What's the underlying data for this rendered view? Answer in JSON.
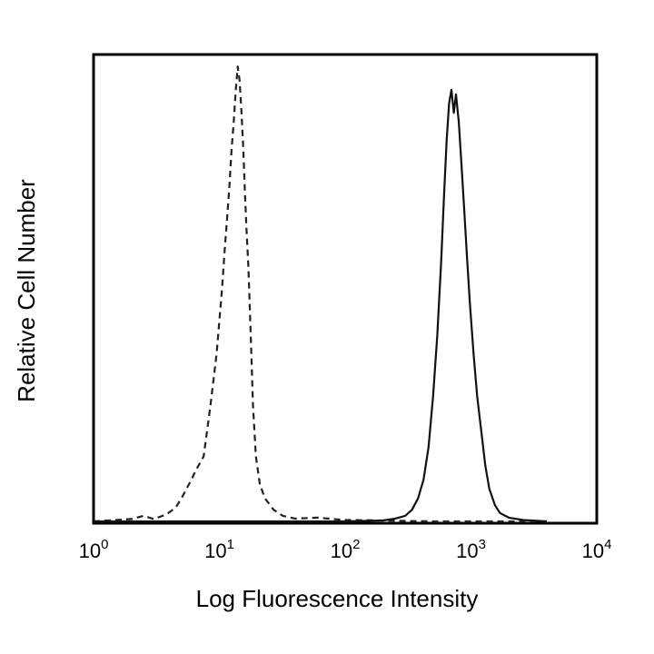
{
  "chart_data": {
    "type": "line",
    "title": "",
    "xlabel": "Log Fluorescence Intensity",
    "ylabel": "Relative Cell Number",
    "x_scale": "log",
    "xlim": [
      1,
      10000
    ],
    "ylim": [
      0,
      1
    ],
    "grid": false,
    "legend": "none",
    "x_ticks": [
      {
        "value": 1,
        "base": "10",
        "exp": "0"
      },
      {
        "value": 10,
        "base": "10",
        "exp": "1"
      },
      {
        "value": 100,
        "base": "10",
        "exp": "2"
      },
      {
        "value": 1000,
        "base": "10",
        "exp": "3"
      },
      {
        "value": 10000,
        "base": "10",
        "exp": "4"
      }
    ],
    "series": [
      {
        "style": "dashed",
        "color": "#222222",
        "points": [
          [
            1.0,
            0.0
          ],
          [
            2.0,
            0.005
          ],
          [
            2.5,
            0.012
          ],
          [
            3.0,
            0.005
          ],
          [
            3.8,
            0.015
          ],
          [
            4.5,
            0.03
          ],
          [
            5.0,
            0.05
          ],
          [
            6.0,
            0.09
          ],
          [
            6.5,
            0.11
          ],
          [
            7.5,
            0.14
          ],
          [
            8.5,
            0.25
          ],
          [
            9.5,
            0.36
          ],
          [
            10.5,
            0.5
          ],
          [
            11.0,
            0.58
          ],
          [
            11.5,
            0.65
          ],
          [
            12.0,
            0.72
          ],
          [
            12.5,
            0.8
          ],
          [
            13.0,
            0.86
          ],
          [
            13.5,
            0.93
          ],
          [
            14.0,
            0.98
          ],
          [
            14.5,
            0.95
          ],
          [
            15.0,
            0.88
          ],
          [
            15.5,
            0.8
          ],
          [
            16.0,
            0.7
          ],
          [
            16.5,
            0.62
          ],
          [
            17.0,
            0.55
          ],
          [
            17.5,
            0.45
          ],
          [
            18.0,
            0.35
          ],
          [
            18.5,
            0.25
          ],
          [
            19.5,
            0.14
          ],
          [
            21.0,
            0.08
          ],
          [
            23.0,
            0.05
          ],
          [
            27.0,
            0.025
          ],
          [
            32.0,
            0.012
          ],
          [
            40.0,
            0.006
          ],
          [
            60.0,
            0.008
          ],
          [
            100.0,
            0.003
          ],
          [
            200.0,
            0.002
          ],
          [
            500.0,
            0.0
          ],
          [
            2000.0,
            0.0
          ],
          [
            4000.0,
            0.0
          ]
        ]
      },
      {
        "style": "solid",
        "color": "#111111",
        "points": [
          [
            1.0,
            0.0
          ],
          [
            100.0,
            0.0
          ],
          [
            200.0,
            0.002
          ],
          [
            250.0,
            0.006
          ],
          [
            300.0,
            0.012
          ],
          [
            340.0,
            0.025
          ],
          [
            380.0,
            0.05
          ],
          [
            420.0,
            0.09
          ],
          [
            460.0,
            0.16
          ],
          [
            500.0,
            0.27
          ],
          [
            540.0,
            0.4
          ],
          [
            580.0,
            0.56
          ],
          [
            610.0,
            0.7
          ],
          [
            640.0,
            0.82
          ],
          [
            670.0,
            0.9
          ],
          [
            700.0,
            0.93
          ],
          [
            730.0,
            0.88
          ],
          [
            760.0,
            0.92
          ],
          [
            800.0,
            0.86
          ],
          [
            840.0,
            0.77
          ],
          [
            880.0,
            0.68
          ],
          [
            930.0,
            0.57
          ],
          [
            980.0,
            0.47
          ],
          [
            1050.0,
            0.36
          ],
          [
            1120.0,
            0.27
          ],
          [
            1200.0,
            0.2
          ],
          [
            1300.0,
            0.12
          ],
          [
            1400.0,
            0.07
          ],
          [
            1550.0,
            0.035
          ],
          [
            1700.0,
            0.018
          ],
          [
            2000.0,
            0.008
          ],
          [
            2600.0,
            0.003
          ],
          [
            4000.0,
            0.0
          ]
        ]
      }
    ]
  }
}
